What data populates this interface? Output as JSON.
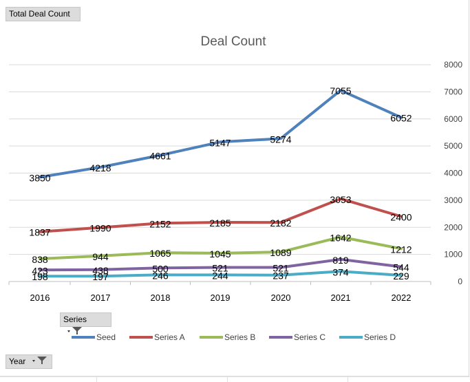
{
  "buttons": {
    "total_label": "Total Deal Count",
    "series_label": "Series",
    "year_label": "Year"
  },
  "chart_data": {
    "type": "line",
    "title": "Deal Count",
    "xlabel": "",
    "ylabel": "",
    "categories": [
      "2016",
      "2017",
      "2018",
      "2019",
      "2020",
      "2021",
      "2022"
    ],
    "ylim": [
      0,
      8000
    ],
    "yticks": [
      0,
      1000,
      2000,
      3000,
      4000,
      5000,
      6000,
      7000,
      8000
    ],
    "y_axis_position": "right",
    "legend_position": "bottom",
    "grid": true,
    "series": [
      {
        "name": "Seed",
        "color": "#4f81bd",
        "values": [
          3850,
          4218,
          4661,
          5147,
          5274,
          7055,
          6052
        ]
      },
      {
        "name": "Series A",
        "color": "#c0504d",
        "values": [
          1837,
          1990,
          2152,
          2185,
          2182,
          3053,
          2400
        ]
      },
      {
        "name": "Series B",
        "color": "#9bbb59",
        "values": [
          838,
          944,
          1065,
          1045,
          1089,
          1642,
          1212
        ]
      },
      {
        "name": "Series C",
        "color": "#8064a2",
        "values": [
          423,
          438,
          500,
          521,
          521,
          819,
          544
        ]
      },
      {
        "name": "Series D",
        "color": "#4bacc6",
        "values": [
          198,
          197,
          246,
          244,
          237,
          374,
          229
        ]
      }
    ]
  }
}
